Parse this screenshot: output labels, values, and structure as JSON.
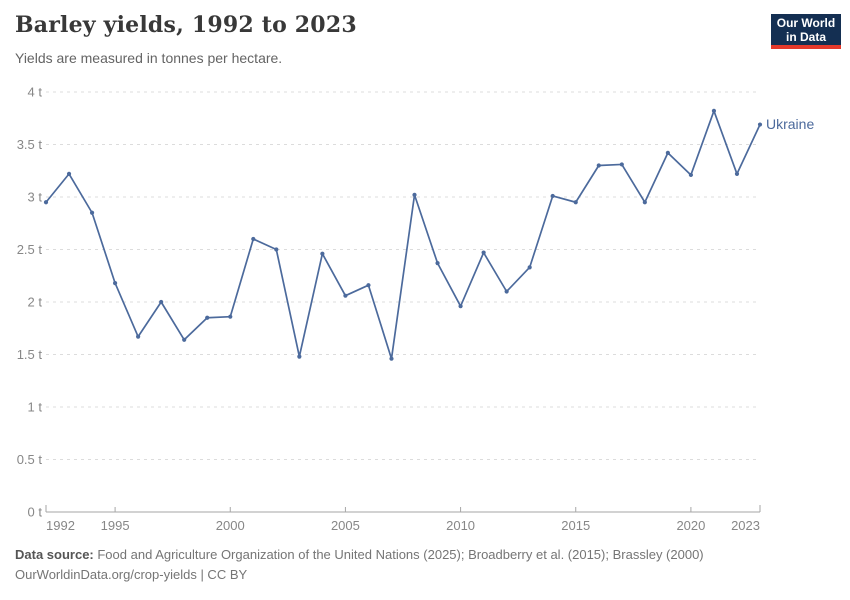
{
  "header": {
    "title": "Barley yields, 1992 to 2023",
    "subtitle": "Yields are measured in tonnes per hectare."
  },
  "logo": {
    "line1": "Our World",
    "line2": "in Data",
    "bg_color": "#142f52",
    "accent_color": "#e5392b"
  },
  "chart_data": {
    "type": "line",
    "title": "Barley yields, 1992 to 2023",
    "ylabel": "tonnes per hectare",
    "xlim": [
      1992,
      2023
    ],
    "ylim": [
      0,
      4
    ],
    "grid": "dashed horizontal gridlines",
    "legend_position": "end-of-line label",
    "x_ticks": [
      1992,
      1995,
      2000,
      2005,
      2010,
      2015,
      2020,
      2023
    ],
    "y_ticks": [
      {
        "value": 0,
        "label": "0 t"
      },
      {
        "value": 0.5,
        "label": "0.5 t"
      },
      {
        "value": 1,
        "label": "1 t"
      },
      {
        "value": 1.5,
        "label": "1.5 t"
      },
      {
        "value": 2,
        "label": "2 t"
      },
      {
        "value": 2.5,
        "label": "2.5 t"
      },
      {
        "value": 3,
        "label": "3 t"
      },
      {
        "value": 3.5,
        "label": "3.5 t"
      },
      {
        "value": 4,
        "label": "4 t"
      }
    ],
    "series": [
      {
        "name": "Ukraine",
        "color": "#4C6A9C",
        "x": [
          1992,
          1993,
          1994,
          1995,
          1996,
          1997,
          1998,
          1999,
          2000,
          2001,
          2002,
          2003,
          2004,
          2005,
          2006,
          2007,
          2008,
          2009,
          2010,
          2011,
          2012,
          2013,
          2014,
          2015,
          2016,
          2017,
          2018,
          2019,
          2020,
          2021,
          2022,
          2023
        ],
        "values": [
          2.95,
          3.22,
          2.85,
          2.18,
          1.67,
          2.0,
          1.64,
          1.85,
          1.86,
          2.6,
          2.5,
          1.48,
          2.46,
          2.06,
          2.16,
          1.46,
          3.02,
          2.37,
          1.96,
          2.47,
          2.1,
          2.33,
          3.01,
          2.95,
          3.3,
          3.31,
          2.95,
          3.42,
          3.21,
          3.82,
          3.22,
          3.69
        ]
      }
    ]
  },
  "footer": {
    "datasource_label": "Data source:",
    "datasource_text": " Food and Agriculture Organization of the United Nations (2025); Broadberry et al. (2015); Brassley (2000)",
    "license_line": "OurWorldinData.org/crop-yields | CC BY"
  }
}
